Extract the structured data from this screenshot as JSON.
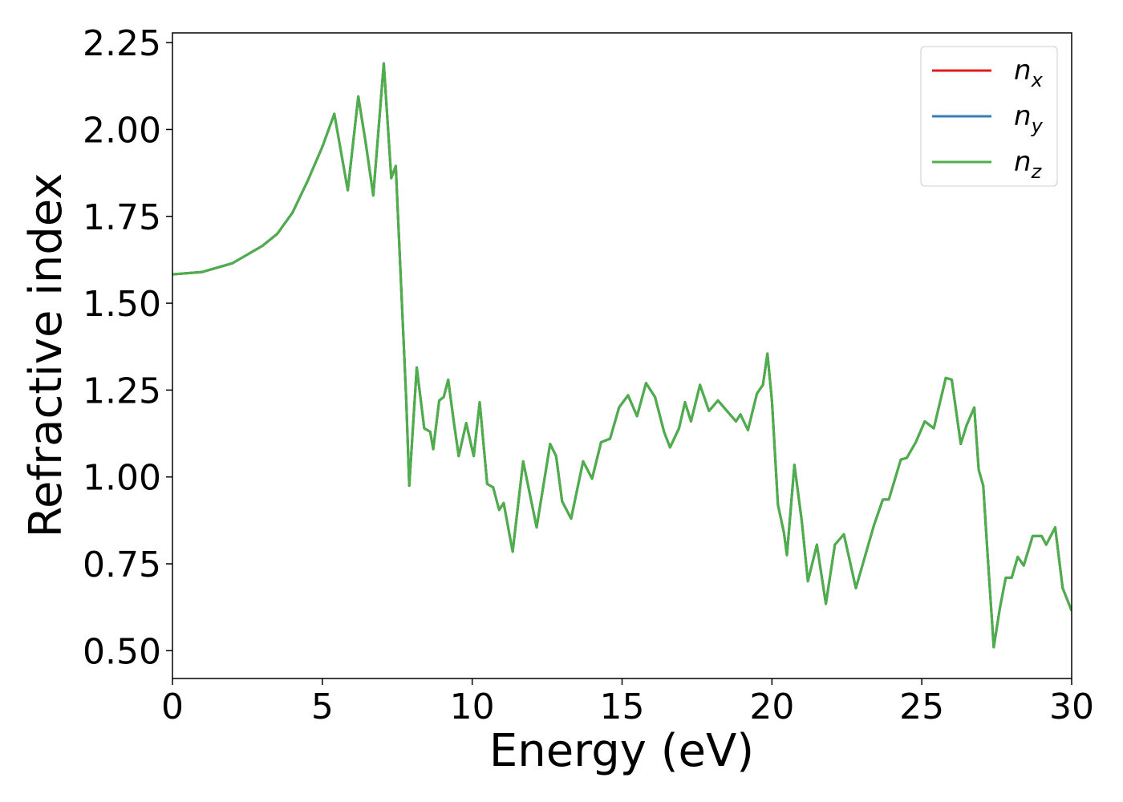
{
  "chart_data": {
    "type": "line",
    "x_label": "Energy (eV)",
    "y_label": "Refractive index",
    "x": [
      0,
      1,
      2,
      3,
      3.5,
      4,
      4.5,
      5,
      5.4,
      5.85,
      6.2,
      6.45,
      6.7,
      7.05,
      7.3,
      7.45,
      7.8,
      7.9,
      8.15,
      8.4,
      8.6,
      8.7,
      8.9,
      9.05,
      9.2,
      9.4,
      9.55,
      9.8,
      10.05,
      10.25,
      10.5,
      10.7,
      10.9,
      11.05,
      11.35,
      11.7,
      12.15,
      12.6,
      12.8,
      13.0,
      13.3,
      13.7,
      14.0,
      14.3,
      14.6,
      14.9,
      15.2,
      15.5,
      15.8,
      16.1,
      16.4,
      16.6,
      16.9,
      17.1,
      17.3,
      17.6,
      17.9,
      18.2,
      18.5,
      18.8,
      18.95,
      19.2,
      19.5,
      19.7,
      19.85,
      20.0,
      20.2,
      20.4,
      20.5,
      20.75,
      21.0,
      21.2,
      21.5,
      21.8,
      22.1,
      22.4,
      22.8,
      23.1,
      23.4,
      23.7,
      23.9,
      24.3,
      24.5,
      24.8,
      25.1,
      25.4,
      25.8,
      26.0,
      26.3,
      26.5,
      26.75,
      26.9,
      27.05,
      27.2,
      27.4,
      27.6,
      27.8,
      28.0,
      28.2,
      28.4,
      28.7,
      29.0,
      29.15,
      29.45,
      29.7,
      30
    ],
    "series": [
      {
        "name": "nx",
        "color": "#e41a1c",
        "values": [
          1.583,
          1.59,
          1.615,
          1.665,
          1.7,
          1.76,
          1.85,
          1.95,
          2.045,
          1.825,
          2.095,
          1.96,
          1.81,
          2.19,
          1.86,
          1.895,
          1.22,
          0.975,
          1.315,
          1.14,
          1.13,
          1.08,
          1.22,
          1.23,
          1.28,
          1.15,
          1.06,
          1.155,
          1.06,
          1.215,
          0.98,
          0.97,
          0.905,
          0.925,
          0.785,
          1.045,
          0.855,
          1.095,
          1.06,
          0.93,
          0.88,
          1.045,
          0.995,
          1.1,
          1.11,
          1.2,
          1.235,
          1.175,
          1.27,
          1.23,
          1.13,
          1.085,
          1.14,
          1.215,
          1.16,
          1.265,
          1.19,
          1.22,
          1.19,
          1.16,
          1.18,
          1.135,
          1.24,
          1.265,
          1.355,
          1.22,
          0.92,
          0.84,
          0.775,
          1.035,
          0.87,
          0.7,
          0.805,
          0.635,
          0.805,
          0.835,
          0.68,
          0.77,
          0.86,
          0.935,
          0.935,
          1.05,
          1.055,
          1.1,
          1.16,
          1.14,
          1.285,
          1.28,
          1.095,
          1.15,
          1.2,
          1.02,
          0.975,
          0.77,
          0.51,
          0.62,
          0.71,
          0.71,
          0.77,
          0.745,
          0.83,
          0.83,
          0.805,
          0.855,
          0.68,
          0.615
        ]
      },
      {
        "name": "ny",
        "color": "#377eb8",
        "values": [
          1.583,
          1.59,
          1.615,
          1.665,
          1.7,
          1.76,
          1.85,
          1.95,
          2.045,
          1.825,
          2.095,
          1.96,
          1.81,
          2.19,
          1.86,
          1.895,
          1.22,
          0.975,
          1.315,
          1.14,
          1.13,
          1.08,
          1.22,
          1.23,
          1.28,
          1.15,
          1.06,
          1.155,
          1.06,
          1.215,
          0.98,
          0.97,
          0.905,
          0.925,
          0.785,
          1.045,
          0.855,
          1.095,
          1.06,
          0.93,
          0.88,
          1.045,
          0.995,
          1.1,
          1.11,
          1.2,
          1.235,
          1.175,
          1.27,
          1.23,
          1.13,
          1.085,
          1.14,
          1.215,
          1.16,
          1.265,
          1.19,
          1.22,
          1.19,
          1.16,
          1.18,
          1.135,
          1.24,
          1.265,
          1.355,
          1.22,
          0.92,
          0.84,
          0.775,
          1.035,
          0.87,
          0.7,
          0.805,
          0.635,
          0.805,
          0.835,
          0.68,
          0.77,
          0.86,
          0.935,
          0.935,
          1.05,
          1.055,
          1.1,
          1.16,
          1.14,
          1.285,
          1.28,
          1.095,
          1.15,
          1.2,
          1.02,
          0.975,
          0.77,
          0.51,
          0.62,
          0.71,
          0.71,
          0.77,
          0.745,
          0.83,
          0.83,
          0.805,
          0.855,
          0.68,
          0.615
        ]
      },
      {
        "name": "nz",
        "color": "#4daf4a",
        "values": [
          1.583,
          1.59,
          1.615,
          1.665,
          1.7,
          1.76,
          1.85,
          1.95,
          2.045,
          1.825,
          2.095,
          1.96,
          1.81,
          2.19,
          1.86,
          1.895,
          1.22,
          0.975,
          1.315,
          1.14,
          1.13,
          1.08,
          1.22,
          1.23,
          1.28,
          1.15,
          1.06,
          1.155,
          1.06,
          1.215,
          0.98,
          0.97,
          0.905,
          0.925,
          0.785,
          1.045,
          0.855,
          1.095,
          1.06,
          0.93,
          0.88,
          1.045,
          0.995,
          1.1,
          1.11,
          1.2,
          1.235,
          1.175,
          1.27,
          1.23,
          1.13,
          1.085,
          1.14,
          1.215,
          1.16,
          1.265,
          1.19,
          1.22,
          1.19,
          1.16,
          1.18,
          1.135,
          1.24,
          1.265,
          1.355,
          1.22,
          0.92,
          0.84,
          0.775,
          1.035,
          0.87,
          0.7,
          0.805,
          0.635,
          0.805,
          0.835,
          0.68,
          0.77,
          0.86,
          0.935,
          0.935,
          1.05,
          1.055,
          1.1,
          1.16,
          1.14,
          1.285,
          1.28,
          1.095,
          1.15,
          1.2,
          1.02,
          0.975,
          0.77,
          0.51,
          0.62,
          0.71,
          0.71,
          0.77,
          0.745,
          0.83,
          0.83,
          0.805,
          0.855,
          0.68,
          0.615
        ]
      }
    ],
    "xlim": [
      0,
      30
    ],
    "xticks": [
      0,
      5,
      10,
      15,
      20,
      25,
      30
    ],
    "ylim": [
      0.42,
      2.278
    ],
    "yticks": [
      {
        "value": 0.5,
        "label": "0.50"
      },
      {
        "value": 0.75,
        "label": "0.75"
      },
      {
        "value": 1.0,
        "label": "1.00"
      },
      {
        "value": 1.25,
        "label": "1.25"
      },
      {
        "value": 1.5,
        "label": "1.50"
      },
      {
        "value": 1.75,
        "label": "1.75"
      },
      {
        "value": 2.0,
        "label": "2.00"
      },
      {
        "value": 2.25,
        "label": "2.25"
      }
    ],
    "grid": false,
    "legend": "upper right"
  }
}
